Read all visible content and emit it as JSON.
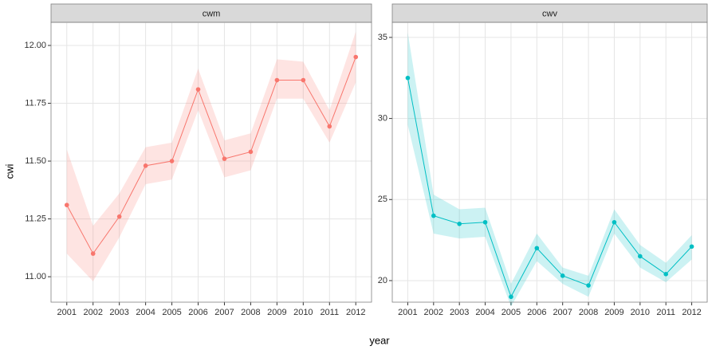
{
  "chart_data": [
    {
      "type": "line",
      "title": "cwm",
      "x_label": "year",
      "y_label": "cwi",
      "categories": [
        "2001",
        "2002",
        "2003",
        "2004",
        "2005",
        "2006",
        "2007",
        "2008",
        "2009",
        "2010",
        "2011",
        "2012"
      ],
      "series": [
        {
          "color": "#F8766D",
          "values": [
            11.31,
            11.1,
            11.26,
            11.48,
            11.5,
            11.81,
            11.51,
            11.54,
            11.85,
            11.85,
            11.65,
            11.95
          ],
          "lower": [
            11.1,
            10.98,
            11.17,
            11.4,
            11.42,
            11.72,
            11.43,
            11.46,
            11.77,
            11.77,
            11.58,
            11.84
          ],
          "upper": [
            11.55,
            11.22,
            11.36,
            11.56,
            11.58,
            11.9,
            11.59,
            11.62,
            11.94,
            11.93,
            11.72,
            12.06
          ]
        }
      ],
      "ylim": [
        10.89,
        12.1
      ],
      "yticks": [
        {
          "value": 11,
          "label": "11.00"
        },
        {
          "value": 11.25,
          "label": "11.25"
        },
        {
          "value": 11.5,
          "label": "11.50"
        },
        {
          "value": 11.75,
          "label": "11.75"
        },
        {
          "value": 12,
          "label": "12.00"
        }
      ],
      "grid": true
    },
    {
      "type": "line",
      "title": "cwv",
      "categories": [
        "2001",
        "2002",
        "2003",
        "2004",
        "2005",
        "2006",
        "2007",
        "2008",
        "2009",
        "2010",
        "2011",
        "2012"
      ],
      "series": [
        {
          "color": "#00BFC4",
          "values": [
            32.5,
            24.0,
            23.5,
            23.6,
            19.0,
            22.0,
            20.3,
            19.7,
            23.6,
            21.5,
            20.4,
            22.1
          ],
          "lower": [
            29.6,
            22.9,
            22.6,
            22.7,
            18.4,
            21.2,
            19.8,
            19.0,
            22.9,
            20.8,
            19.9,
            21.3
          ],
          "upper": [
            35.3,
            25.3,
            24.4,
            24.5,
            19.8,
            22.9,
            20.8,
            20.3,
            24.4,
            22.2,
            21.1,
            22.8
          ]
        }
      ],
      "ylim": [
        18.67,
        35.93
      ],
      "yticks": [
        20,
        25,
        30,
        35
      ],
      "grid": true
    }
  ]
}
